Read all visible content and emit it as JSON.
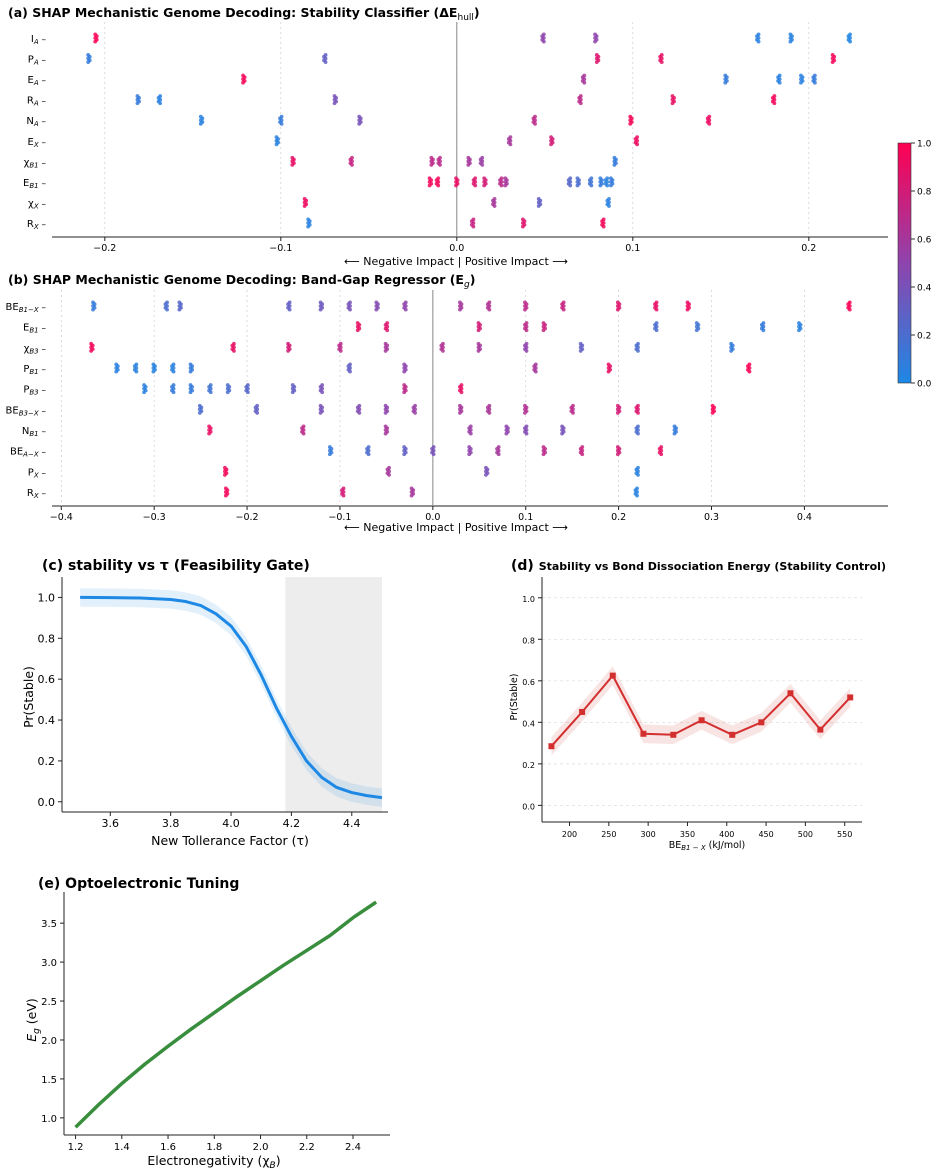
{
  "colorbar": {
    "ticks": [
      "0.0",
      "0.2",
      "0.4",
      "0.6",
      "0.8",
      "1.0"
    ],
    "low_color": "#1e88e5",
    "high_color": "#ff0052"
  },
  "chart_data": [
    {
      "panel": "(a)",
      "type": "scatter",
      "title": "SHAP Mechanistic Genome Decoding: Stability Classifier (ΔE",
      "title_sub": "hull",
      "title_end": ")",
      "features": [
        "I_A",
        "P_A",
        "E_A",
        "R_A",
        "N_A",
        "E_X",
        "χ_B1",
        "E_B1",
        "χ_X",
        "R_X"
      ],
      "xlim": [
        -0.23,
        0.245
      ],
      "xticks": [
        -0.2,
        -0.1,
        0.0,
        0.1,
        0.2
      ],
      "xlabel": "⟵ Negative Impact  |  Positive Impact ⟶",
      "points": [
        [
          [
            -0.205,
            0.98
          ],
          [
            0.049,
            0.5
          ],
          [
            0.079,
            0.5
          ],
          [
            0.171,
            0.05
          ],
          [
            0.19,
            0.05
          ],
          [
            0.223,
            0.02
          ]
        ],
        [
          [
            -0.209,
            0.1
          ],
          [
            -0.075,
            0.3
          ],
          [
            0.08,
            0.85
          ],
          [
            0.116,
            0.9
          ],
          [
            0.214,
            0.95
          ]
        ],
        [
          [
            -0.121,
            0.95
          ],
          [
            0.072,
            0.6
          ],
          [
            0.153,
            0.1
          ],
          [
            0.183,
            0.05
          ],
          [
            0.196,
            0.05
          ],
          [
            0.203,
            0.1
          ]
        ],
        [
          [
            -0.181,
            0.1
          ],
          [
            -0.169,
            0.05
          ],
          [
            -0.069,
            0.4
          ],
          [
            0.07,
            0.7
          ],
          [
            0.123,
            0.9
          ],
          [
            0.18,
            0.95
          ]
        ],
        [
          [
            -0.145,
            0.05
          ],
          [
            -0.1,
            0.1
          ],
          [
            -0.055,
            0.4
          ],
          [
            0.044,
            0.7
          ],
          [
            0.099,
            0.95
          ],
          [
            0.143,
            0.92
          ]
        ],
        [
          [
            -0.102,
            0.05
          ],
          [
            0.03,
            0.6
          ],
          [
            0.054,
            0.8
          ],
          [
            0.102,
            0.92
          ]
        ],
        [
          [
            -0.093,
            0.9
          ],
          [
            -0.06,
            0.75
          ],
          [
            -0.014,
            0.7
          ],
          [
            -0.01,
            0.7
          ],
          [
            0.007,
            0.6
          ],
          [
            0.014,
            0.55
          ],
          [
            0.09,
            0.1
          ]
        ],
        [
          [
            -0.015,
            0.95
          ],
          [
            -0.011,
            0.95
          ],
          [
            0.0,
            0.9
          ],
          [
            0.01,
            0.85
          ],
          [
            0.016,
            0.8
          ],
          [
            0.025,
            0.7
          ],
          [
            0.028,
            0.6
          ],
          [
            0.064,
            0.25
          ],
          [
            0.069,
            0.2
          ],
          [
            0.076,
            0.15
          ],
          [
            0.082,
            0.1
          ],
          [
            0.085,
            0.05
          ],
          [
            0.088,
            0.1
          ]
        ],
        [
          [
            -0.086,
            0.92
          ],
          [
            0.021,
            0.6
          ],
          [
            0.047,
            0.3
          ],
          [
            0.086,
            0.05
          ]
        ],
        [
          [
            -0.084,
            0.05
          ],
          [
            0.009,
            0.75
          ],
          [
            0.038,
            0.85
          ],
          [
            0.083,
            0.95
          ]
        ]
      ]
    },
    {
      "panel": "(b)",
      "type": "scatter",
      "title": "SHAP Mechanistic Genome Decoding: Band-Gap Regressor (E",
      "title_sub": "g",
      "title_end": ")",
      "features": [
        "BE_B1−X",
        "E_B1",
        "χ_B3",
        "P_B1",
        "P_B3",
        "BE_B3−X",
        "N_B1",
        "BE_A−X",
        "P_X",
        "R_X"
      ],
      "xlim": [
        -0.41,
        0.49
      ],
      "xticks": [
        -0.4,
        -0.3,
        -0.2,
        -0.1,
        0.0,
        0.1,
        0.2,
        0.3,
        0.4
      ],
      "xlabel": "⟵ Negative Impact  |  Positive Impact ⟶",
      "points": [
        [
          [
            -0.365,
            0.1
          ],
          [
            -0.287,
            0.2
          ],
          [
            -0.272,
            0.25
          ],
          [
            -0.155,
            0.3
          ],
          [
            -0.12,
            0.35
          ],
          [
            -0.09,
            0.4
          ],
          [
            -0.06,
            0.45
          ],
          [
            -0.03,
            0.5
          ],
          [
            0.03,
            0.6
          ],
          [
            0.06,
            0.65
          ],
          [
            0.1,
            0.7
          ],
          [
            0.14,
            0.75
          ],
          [
            0.2,
            0.85
          ],
          [
            0.24,
            0.9
          ],
          [
            0.275,
            0.92
          ],
          [
            0.448,
            0.98
          ]
        ],
        [
          [
            -0.08,
            0.9
          ],
          [
            -0.05,
            0.85
          ],
          [
            0.05,
            0.8
          ],
          [
            0.1,
            0.7
          ],
          [
            0.12,
            0.75
          ],
          [
            0.24,
            0.2
          ],
          [
            0.285,
            0.15
          ],
          [
            0.355,
            0.1
          ],
          [
            0.395,
            0.05
          ]
        ],
        [
          [
            -0.367,
            0.95
          ],
          [
            -0.215,
            0.9
          ],
          [
            -0.155,
            0.8
          ],
          [
            -0.1,
            0.7
          ],
          [
            -0.05,
            0.6
          ],
          [
            0.01,
            0.65
          ],
          [
            0.05,
            0.6
          ],
          [
            0.1,
            0.5
          ],
          [
            0.16,
            0.3
          ],
          [
            0.22,
            0.2
          ],
          [
            0.322,
            0.1
          ]
        ],
        [
          [
            -0.34,
            0.05
          ],
          [
            -0.32,
            0.05
          ],
          [
            -0.3,
            0.05
          ],
          [
            -0.28,
            0.05
          ],
          [
            -0.26,
            0.1
          ],
          [
            -0.09,
            0.3
          ],
          [
            -0.03,
            0.5
          ],
          [
            0.11,
            0.6
          ],
          [
            0.19,
            0.9
          ],
          [
            0.34,
            0.98
          ]
        ],
        [
          [
            -0.31,
            0.05
          ],
          [
            -0.28,
            0.1
          ],
          [
            -0.26,
            0.1
          ],
          [
            -0.24,
            0.15
          ],
          [
            -0.22,
            0.2
          ],
          [
            -0.2,
            0.25
          ],
          [
            -0.15,
            0.3
          ],
          [
            -0.12,
            0.4
          ],
          [
            -0.03,
            0.7
          ],
          [
            0.03,
            0.9
          ]
        ],
        [
          [
            -0.25,
            0.2
          ],
          [
            -0.19,
            0.3
          ],
          [
            -0.12,
            0.4
          ],
          [
            -0.08,
            0.45
          ],
          [
            -0.05,
            0.5
          ],
          [
            -0.02,
            0.55
          ],
          [
            0.03,
            0.6
          ],
          [
            0.06,
            0.62
          ],
          [
            0.1,
            0.65
          ],
          [
            0.15,
            0.7
          ],
          [
            0.2,
            0.8
          ],
          [
            0.22,
            0.85
          ],
          [
            0.302,
            0.98
          ]
        ],
        [
          [
            -0.24,
            0.9
          ],
          [
            -0.14,
            0.7
          ],
          [
            -0.05,
            0.6
          ],
          [
            0.04,
            0.55
          ],
          [
            0.08,
            0.5
          ],
          [
            0.1,
            0.45
          ],
          [
            0.14,
            0.4
          ],
          [
            0.22,
            0.2
          ],
          [
            0.261,
            0.1
          ]
        ],
        [
          [
            -0.11,
            0.1
          ],
          [
            -0.07,
            0.2
          ],
          [
            -0.03,
            0.3
          ],
          [
            0.0,
            0.4
          ],
          [
            0.04,
            0.5
          ],
          [
            0.07,
            0.6
          ],
          [
            0.12,
            0.7
          ],
          [
            0.16,
            0.75
          ],
          [
            0.2,
            0.8
          ],
          [
            0.245,
            0.9
          ]
        ],
        [
          [
            -0.223,
            0.95
          ],
          [
            -0.048,
            0.6
          ],
          [
            0.058,
            0.4
          ],
          [
            0.22,
            0.05
          ]
        ],
        [
          [
            -0.222,
            0.95
          ],
          [
            -0.097,
            0.8
          ],
          [
            -0.022,
            0.6
          ],
          [
            0.219,
            0.05
          ]
        ]
      ]
    },
    {
      "panel": "(c)",
      "type": "line",
      "title": "stability vs τ  (Feasibility Gate)",
      "xlabel": "New Tollerance Factor (τ)",
      "ylabel": "Pr(Stable)",
      "xlim": [
        3.44,
        4.52
      ],
      "ylim": [
        -0.05,
        1.1
      ],
      "xticks": [
        3.6,
        3.8,
        4.0,
        4.2,
        4.4
      ],
      "yticks": [
        0.0,
        0.2,
        0.4,
        0.6,
        0.8,
        1.0
      ],
      "shaded_region": [
        4.18,
        4.5
      ],
      "color": "#1e88e5",
      "x": [
        3.5,
        3.6,
        3.7,
        3.8,
        3.85,
        3.9,
        3.95,
        4.0,
        4.05,
        4.1,
        4.15,
        4.2,
        4.25,
        4.3,
        4.35,
        4.4,
        4.45,
        4.5
      ],
      "y": [
        1.0,
        0.999,
        0.997,
        0.99,
        0.98,
        0.96,
        0.92,
        0.86,
        0.76,
        0.62,
        0.46,
        0.32,
        0.2,
        0.12,
        0.07,
        0.045,
        0.03,
        0.02
      ],
      "band": 0.045
    },
    {
      "panel": "(d)",
      "type": "line",
      "title": "Stability vs Bond Dissociation Energy (Stability Control)",
      "xlabel": "BE",
      "xlabel_sub": "B1 − X",
      "xlabel_end": " (kJ/mol)",
      "ylabel": "Pr(Stable)",
      "xlim": [
        165,
        572
      ],
      "ylim": [
        -0.08,
        1.1
      ],
      "xticks": [
        200,
        250,
        300,
        350,
        400,
        450,
        500,
        550
      ],
      "yticks": [
        0.0,
        0.2,
        0.4,
        0.6,
        0.8,
        1.0
      ],
      "color": "#d32f2f",
      "x": [
        177,
        216,
        255,
        294,
        332,
        368,
        407,
        444,
        481,
        519,
        557
      ],
      "y": [
        0.285,
        0.45,
        0.625,
        0.345,
        0.34,
        0.41,
        0.34,
        0.4,
        0.54,
        0.365,
        0.52
      ],
      "band": 0.045
    },
    {
      "panel": "(e)",
      "type": "line",
      "title": "Optoelectronic Tuning",
      "xlabel": "Electronegativity (χ",
      "xlabel_sub": "B",
      "xlabel_end": ")",
      "ylabel": "E",
      "ylabel_sub": "g",
      "ylabel_end": " (eV)",
      "xlim": [
        1.15,
        2.56
      ],
      "ylim": [
        0.78,
        3.9
      ],
      "xticks": [
        1.2,
        1.4,
        1.6,
        1.8,
        2.0,
        2.2,
        2.4
      ],
      "yticks": [
        1.0,
        1.5,
        2.0,
        2.5,
        3.0,
        3.5
      ],
      "color": "#388e3c",
      "x": [
        1.2,
        1.3,
        1.4,
        1.5,
        1.6,
        1.7,
        1.8,
        1.9,
        2.0,
        2.1,
        2.2,
        2.3,
        2.4,
        2.5
      ],
      "y": [
        0.88,
        1.17,
        1.44,
        1.69,
        1.92,
        2.14,
        2.35,
        2.56,
        2.76,
        2.96,
        3.15,
        3.34,
        3.57,
        3.77
      ]
    }
  ]
}
